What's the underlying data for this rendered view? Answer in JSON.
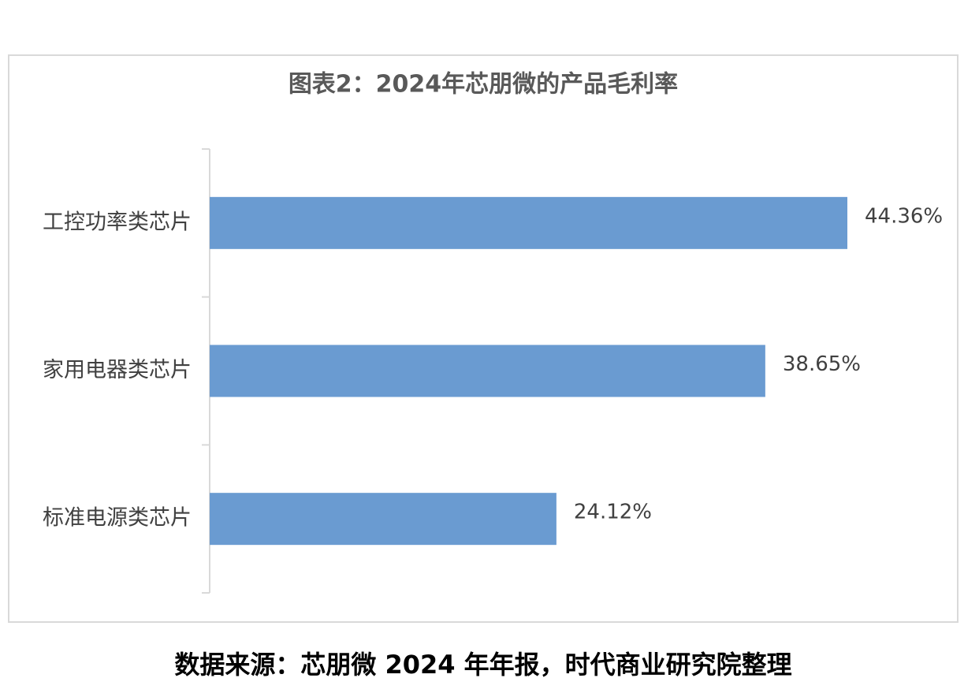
{
  "chart_data": {
    "type": "hbar",
    "title": "图表2：2024年芯朋微的产品毛利率",
    "categories": [
      "工控功率类芯片",
      "家用电器类芯片",
      "标准电源类芯片"
    ],
    "values": [
      44.36,
      38.65,
      24.12
    ],
    "value_labels": [
      "44.36%",
      "38.65%",
      "24.12%"
    ],
    "color": "#6a9bd1",
    "source": "数据来源：芯朋微 2024 年年报，时代商业研究院整理"
  }
}
